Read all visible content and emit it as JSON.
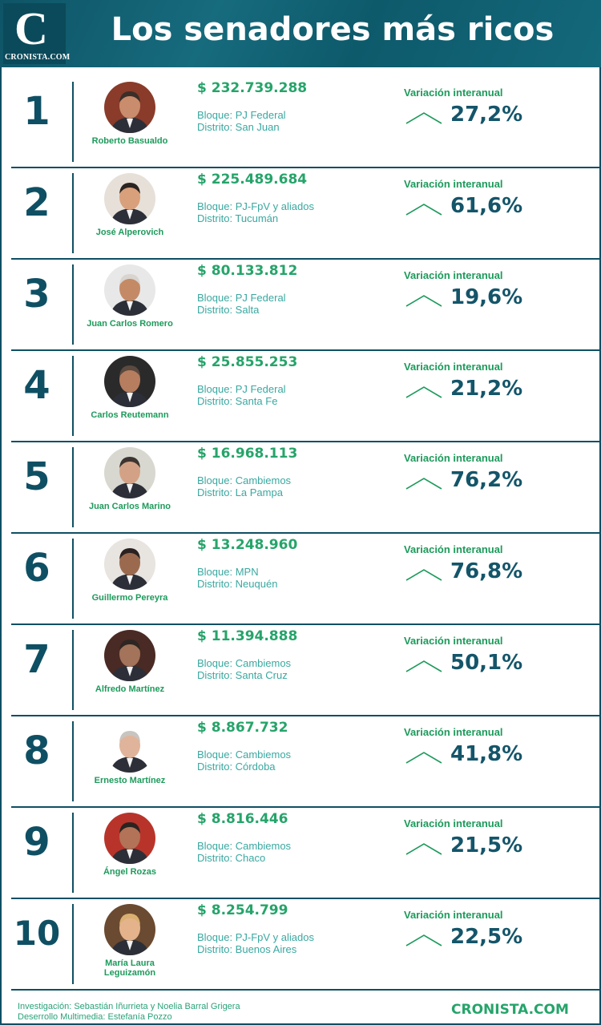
{
  "header": {
    "logo_letter": "C",
    "logo_text": "CRONISTA.COM",
    "title": "Los senadores más ricos"
  },
  "colors": {
    "primary": "#0f4f63",
    "accent": "#26a46a"
  },
  "senators": [
    {
      "rank": "1",
      "name": "Roberto Basualdo",
      "amount": "$ 232.739.288",
      "bloque": "Bloque: PJ Federal",
      "distrito": "Distrito: San Juan",
      "var_label": "Variación interanual",
      "pct": "27,2%"
    },
    {
      "rank": "2",
      "name": "José Alperovich",
      "amount": "$ 225.489.684",
      "bloque": "Bloque: PJ-FpV y aliados",
      "distrito": "Distrito: Tucumán",
      "var_label": "Variación interanual",
      "pct": "61,6%"
    },
    {
      "rank": "3",
      "name": "Juan Carlos Romero",
      "amount": "$  80.133.812",
      "bloque": "Bloque: PJ Federal",
      "distrito": "Distrito: Salta",
      "var_label": "Variación interanual",
      "pct": "19,6%"
    },
    {
      "rank": "4",
      "name": "Carlos Reutemann",
      "amount": "$  25.855.253",
      "bloque": "Bloque: PJ Federal",
      "distrito": "Distrito: Santa Fe",
      "var_label": "Variación interanual",
      "pct": "21,2%"
    },
    {
      "rank": "5",
      "name": "Juan Carlos Marino",
      "amount": "$ 16.968.113",
      "bloque": "Bloque: Cambiemos",
      "distrito": "Distrito: La Pampa",
      "var_label": "Variación interanual",
      "pct": "76,2%"
    },
    {
      "rank": "6",
      "name": "Guillermo Pereyra",
      "amount": "$ 13.248.960",
      "bloque": "Bloque: MPN",
      "distrito": "Distrito: Neuquén",
      "var_label": "Variación interanual",
      "pct": "76,8%"
    },
    {
      "rank": "7",
      "name": "Alfredo Martínez",
      "amount": "$ 11.394.888",
      "bloque": "Bloque: Cambiemos",
      "distrito": "Distrito: Santa Cruz",
      "var_label": "Variación interanual",
      "pct": "50,1%"
    },
    {
      "rank": "8",
      "name": "Ernesto Martínez",
      "amount": "$  8.867.732",
      "bloque": "Bloque: Cambiemos",
      "distrito": "Distrito: Córdoba",
      "var_label": "Variación interanual",
      "pct": "41,8%"
    },
    {
      "rank": "9",
      "name": "Ángel Rozas",
      "amount": "$ 8.816.446",
      "bloque": "Bloque: Cambiemos",
      "distrito": "Distrito: Chaco",
      "var_label": "Variación interanual",
      "pct": "21,5%"
    },
    {
      "rank": "10",
      "name": "María Laura Leguizamón",
      "amount": "$ 8.254.799",
      "bloque": "Bloque: PJ-FpV y aliados",
      "distrito": "Distrito: Buenos Aires",
      "var_label": "Variación interanual",
      "pct": "22,5%"
    }
  ],
  "footer": {
    "line1": "Investigación: Sebastián Iñurrieta y Noelia Barral Grigera",
    "line2": "Deserrollo Multimedia: Estefanía Pozzo",
    "brand": "CRONISTA.COM"
  }
}
